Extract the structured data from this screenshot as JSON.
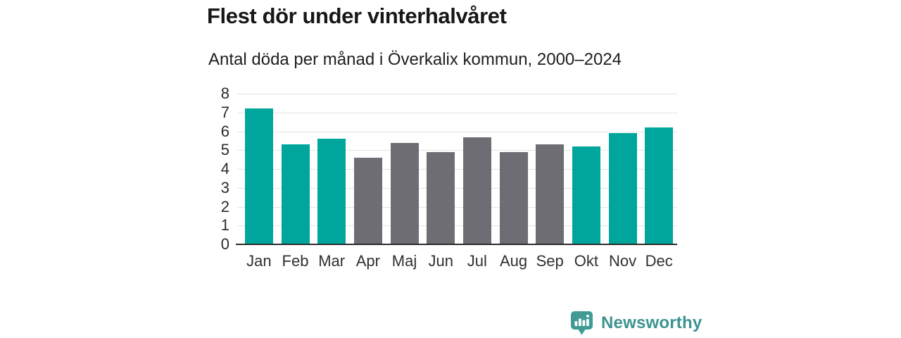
{
  "header": {
    "title": "Flest dör under vinterhalvåret",
    "subtitle": "Antal döda per månad i Överkalix kommun, 2000–2024"
  },
  "chart_data": {
    "type": "bar",
    "title": "Flest dör under vinterhalvåret",
    "subtitle": "Antal döda per månad i Överkalix kommun, 2000–2024",
    "categories": [
      "Jan",
      "Feb",
      "Mar",
      "Apr",
      "Maj",
      "Jun",
      "Jul",
      "Aug",
      "Sep",
      "Okt",
      "Nov",
      "Dec"
    ],
    "values": [
      7.2,
      5.3,
      5.6,
      4.6,
      5.4,
      4.9,
      5.7,
      4.9,
      5.3,
      5.2,
      5.9,
      6.2
    ],
    "bar_colors": [
      "teal",
      "teal",
      "teal",
      "gray",
      "gray",
      "gray",
      "gray",
      "gray",
      "gray",
      "teal",
      "teal",
      "teal"
    ],
    "colors": {
      "teal": "#00a69b",
      "gray": "#6e6d74"
    },
    "xlabel": "",
    "ylabel": "",
    "ylim": [
      0,
      8
    ],
    "yticks": [
      0,
      1,
      2,
      3,
      4,
      5,
      6,
      7,
      8
    ],
    "grid": "horizontal",
    "gridline_color": "#e3e3e3",
    "axis_line_color": "#2a2a2a",
    "legend": "none"
  },
  "footer": {
    "brand": "Newsworthy",
    "brand_color": "#3c948f",
    "icon_color": "#409b95",
    "icon": "newsworthy-bubble-barchart-icon"
  }
}
